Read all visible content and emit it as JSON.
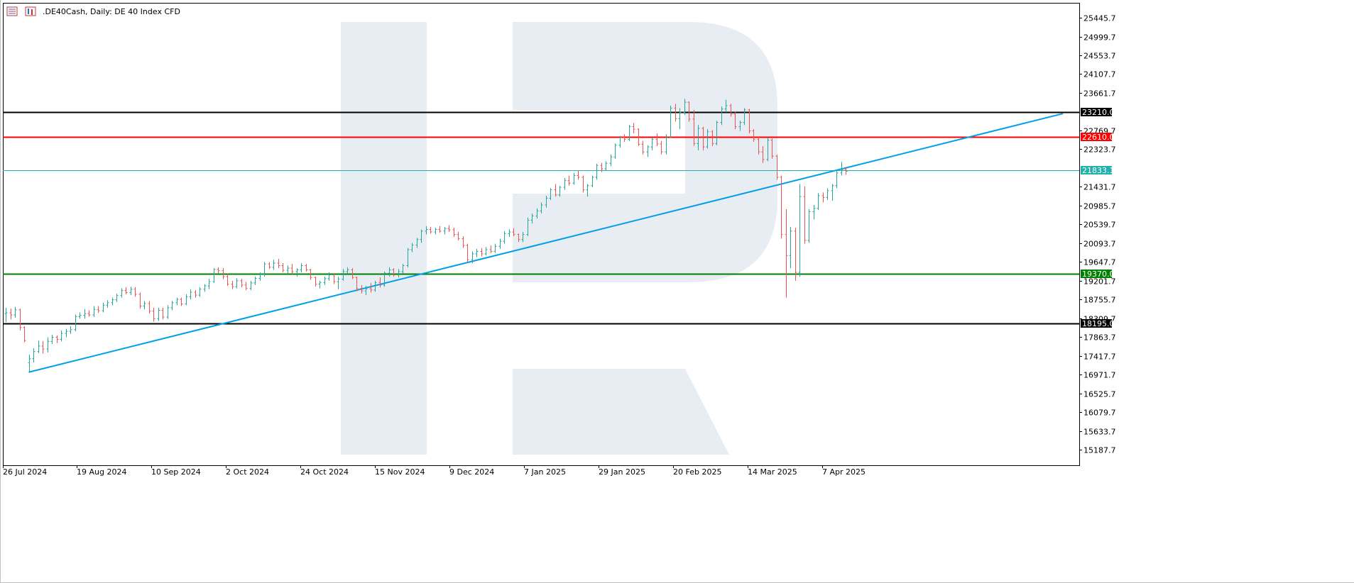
{
  "header": {
    "symbol": ".DE40Cash",
    "timeframe": "Daily",
    "description": "DE 40 Index CFD",
    "title_text": ".DE40Cash, Daily:  DE 40 Index CFD",
    "icons": [
      "bars-menu-icon",
      "chart-type-icon"
    ]
  },
  "chart_data": {
    "type": "bar",
    "title": ".DE40Cash, Daily:  DE 40 Index CFD",
    "xlabel": "",
    "ylabel": "",
    "ylim": [
      14820,
      25800
    ],
    "grid": false,
    "y_ticks": [
      "25445.7",
      "24999.7",
      "24553.7",
      "24107.7",
      "23661.7",
      "22769.7",
      "22323.7",
      "21431.7",
      "20985.7",
      "20539.7",
      "20093.7",
      "19647.7",
      "19201.7",
      "18755.7",
      "18309.7",
      "17863.7",
      "17417.7",
      "16971.7",
      "16525.7",
      "16079.7",
      "15633.7",
      "15187.7"
    ],
    "x_ticks": [
      "26 Jul 2024",
      "19 Aug 2024",
      "10 Sep 2024",
      "2 Oct 2024",
      "24 Oct 2024",
      "15 Nov 2024",
      "9 Dec 2024",
      "7 Jan 2025",
      "29 Jan 2025",
      "20 Feb 2025",
      "14 Mar 2025",
      "7 Apr 2025"
    ],
    "levels": [
      {
        "price": 23210.0,
        "label": "23210.0",
        "color": "#000000"
      },
      {
        "price": 22610.0,
        "label": "22610.0",
        "color": "#ff0000"
      },
      {
        "price": 21833.1,
        "label": "21833.1",
        "color": "#20b2aa"
      },
      {
        "price": 19370.0,
        "label": "19370.0",
        "color": "#008000"
      },
      {
        "price": 18195.0,
        "label": "18195.0",
        "color": "#000000"
      }
    ],
    "trendline": {
      "color": "#00a0e8"
    },
    "colors": {
      "up": "#26a69a",
      "down": "#ef5350"
    },
    "bars": [
      [
        18420,
        18560,
        18220,
        18440
      ],
      [
        18440,
        18540,
        18280,
        18390
      ],
      [
        18390,
        18580,
        18320,
        18510
      ],
      [
        18510,
        18540,
        18020,
        18090
      ],
      [
        18090,
        18120,
        17740,
        17780
      ],
      [
        17250,
        17450,
        17050,
        17350
      ],
      [
        17350,
        17600,
        17260,
        17520
      ],
      [
        17520,
        17780,
        17480,
        17650
      ],
      [
        17650,
        17770,
        17470,
        17580
      ],
      [
        17580,
        17860,
        17500,
        17760
      ],
      [
        17760,
        17920,
        17700,
        17860
      ],
      [
        17860,
        17900,
        17720,
        17810
      ],
      [
        17810,
        18020,
        17760,
        17950
      ],
      [
        17950,
        18060,
        17860,
        18000
      ],
      [
        18000,
        18120,
        17940,
        18040
      ],
      [
        18040,
        18400,
        18000,
        18350
      ],
      [
        18350,
        18450,
        18300,
        18380
      ],
      [
        18380,
        18530,
        18300,
        18420
      ],
      [
        18420,
        18500,
        18350,
        18390
      ],
      [
        18390,
        18600,
        18340,
        18520
      ],
      [
        18520,
        18600,
        18440,
        18490
      ],
      [
        18490,
        18680,
        18450,
        18620
      ],
      [
        18620,
        18740,
        18560,
        18680
      ],
      [
        18680,
        18800,
        18620,
        18750
      ],
      [
        18750,
        18900,
        18700,
        18850
      ],
      [
        18850,
        19020,
        18800,
        18970
      ],
      [
        18970,
        19050,
        18880,
        18920
      ],
      [
        18920,
        19060,
        18860,
        19000
      ],
      [
        19000,
        19050,
        18820,
        18880
      ],
      [
        18880,
        18920,
        18540,
        18600
      ],
      [
        18600,
        18720,
        18520,
        18660
      ],
      [
        18660,
        18720,
        18420,
        18480
      ],
      [
        18480,
        18560,
        18230,
        18300
      ],
      [
        18300,
        18560,
        18250,
        18500
      ],
      [
        18500,
        18560,
        18280,
        18340
      ],
      [
        18340,
        18620,
        18300,
        18560
      ],
      [
        18560,
        18720,
        18500,
        18680
      ],
      [
        18680,
        18800,
        18620,
        18760
      ],
      [
        18760,
        18800,
        18600,
        18650
      ],
      [
        18650,
        18880,
        18620,
        18820
      ],
      [
        18820,
        19000,
        18760,
        18930
      ],
      [
        18930,
        18980,
        18800,
        18860
      ],
      [
        18860,
        19050,
        18820,
        19000
      ],
      [
        19000,
        19120,
        18940,
        19080
      ],
      [
        19080,
        19250,
        19000,
        19180
      ],
      [
        19180,
        19500,
        19150,
        19470
      ],
      [
        19470,
        19520,
        19380,
        19440
      ],
      [
        19440,
        19500,
        19240,
        19300
      ],
      [
        19300,
        19360,
        19080,
        19120
      ],
      [
        19120,
        19200,
        19000,
        19060
      ],
      [
        19060,
        19260,
        19020,
        19200
      ],
      [
        19200,
        19250,
        19050,
        19100
      ],
      [
        19100,
        19180,
        18980,
        19020
      ],
      [
        19020,
        19200,
        18980,
        19150
      ],
      [
        19150,
        19300,
        19100,
        19260
      ],
      [
        19260,
        19400,
        19200,
        19350
      ],
      [
        19350,
        19650,
        19300,
        19600
      ],
      [
        19600,
        19640,
        19480,
        19520
      ],
      [
        19520,
        19700,
        19460,
        19620
      ],
      [
        19620,
        19720,
        19500,
        19560
      ],
      [
        19560,
        19620,
        19400,
        19450
      ],
      [
        19450,
        19560,
        19380,
        19500
      ],
      [
        19500,
        19600,
        19360,
        19420
      ],
      [
        19420,
        19500,
        19300,
        19460
      ],
      [
        19460,
        19620,
        19400,
        19560
      ],
      [
        19560,
        19600,
        19420,
        19460
      ],
      [
        19460,
        19480,
        19220,
        19280
      ],
      [
        19280,
        19300,
        19060,
        19120
      ],
      [
        19120,
        19200,
        19020,
        19160
      ],
      [
        19160,
        19300,
        19100,
        19250
      ],
      [
        19250,
        19400,
        19200,
        19340
      ],
      [
        19340,
        19380,
        19120,
        19180
      ],
      [
        19180,
        19300,
        19000,
        19240
      ],
      [
        19240,
        19480,
        19200,
        19420
      ],
      [
        19420,
        19520,
        19360,
        19460
      ],
      [
        19460,
        19500,
        19240,
        19280
      ],
      [
        19280,
        19300,
        18950,
        19020
      ],
      [
        19020,
        19100,
        18900,
        18960
      ],
      [
        18960,
        19080,
        18860,
        19010
      ],
      [
        19010,
        19150,
        18920,
        18980
      ],
      [
        18980,
        19200,
        18940,
        19160
      ],
      [
        19160,
        19280,
        19040,
        19100
      ],
      [
        19100,
        19420,
        19060,
        19380
      ],
      [
        19380,
        19520,
        19300,
        19460
      ],
      [
        19460,
        19500,
        19300,
        19340
      ],
      [
        19340,
        19480,
        19280,
        19420
      ],
      [
        19420,
        19600,
        19380,
        19560
      ],
      [
        19560,
        19980,
        19520,
        19940
      ],
      [
        19940,
        20100,
        19880,
        20050
      ],
      [
        20050,
        20220,
        19980,
        20180
      ],
      [
        20180,
        20420,
        20100,
        20380
      ],
      [
        20380,
        20500,
        20300,
        20420
      ],
      [
        20420,
        20480,
        20320,
        20360
      ],
      [
        20360,
        20460,
        20300,
        20420
      ],
      [
        20420,
        20500,
        20340,
        20380
      ],
      [
        20380,
        20480,
        20300,
        20440
      ],
      [
        20440,
        20520,
        20360,
        20410
      ],
      [
        20410,
        20460,
        20240,
        20300
      ],
      [
        20300,
        20360,
        20160,
        20200
      ],
      [
        20200,
        20260,
        19980,
        20040
      ],
      [
        20040,
        20080,
        19640,
        19700
      ],
      [
        19700,
        19900,
        19620,
        19840
      ],
      [
        19840,
        19960,
        19760,
        19900
      ],
      [
        19900,
        19980,
        19780,
        19840
      ],
      [
        19840,
        20000,
        19800,
        19940
      ],
      [
        19940,
        20040,
        19860,
        19900
      ],
      [
        19900,
        20080,
        19860,
        20020
      ],
      [
        20020,
        20200,
        19960,
        20140
      ],
      [
        20140,
        20380,
        20080,
        20320
      ],
      [
        20320,
        20420,
        20240,
        20360
      ],
      [
        20360,
        20450,
        20260,
        20300
      ],
      [
        20300,
        20320,
        20120,
        20180
      ],
      [
        20180,
        20360,
        20120,
        20300
      ],
      [
        20300,
        20700,
        20260,
        20640
      ],
      [
        20640,
        20800,
        20560,
        20740
      ],
      [
        20740,
        20920,
        20680,
        20860
      ],
      [
        20860,
        21060,
        20800,
        21000
      ],
      [
        21000,
        21220,
        20940,
        21160
      ],
      [
        21160,
        21400,
        21120,
        21360
      ],
      [
        21360,
        21500,
        21200,
        21240
      ],
      [
        21240,
        21450,
        21200,
        21420
      ],
      [
        21420,
        21640,
        21360,
        21580
      ],
      [
        21580,
        21700,
        21460,
        21520
      ],
      [
        21520,
        21760,
        21480,
        21700
      ],
      [
        21700,
        21820,
        21600,
        21660
      ],
      [
        21660,
        21700,
        21300,
        21360
      ],
      [
        21360,
        21500,
        21200,
        21460
      ],
      [
        21460,
        21700,
        21420,
        21660
      ],
      [
        21660,
        21980,
        21600,
        21940
      ],
      [
        21940,
        22000,
        21780,
        21860
      ],
      [
        21860,
        22040,
        21820,
        21990
      ],
      [
        21990,
        22200,
        21920,
        22140
      ],
      [
        22140,
        22460,
        22100,
        22420
      ],
      [
        22420,
        22640,
        22360,
        22600
      ],
      [
        22600,
        22680,
        22500,
        22560
      ],
      [
        22560,
        22900,
        22520,
        22860
      ],
      [
        22860,
        22950,
        22700,
        22800
      ],
      [
        22800,
        22820,
        22400,
        22440
      ],
      [
        22440,
        22520,
        22200,
        22260
      ],
      [
        22260,
        22420,
        22140,
        22380
      ],
      [
        22380,
        22600,
        22300,
        22560
      ],
      [
        22560,
        22700,
        22400,
        22450
      ],
      [
        22450,
        22520,
        22200,
        22260
      ],
      [
        22260,
        22680,
        22200,
        22620
      ],
      [
        22620,
        23360,
        22600,
        23300
      ],
      [
        23300,
        23400,
        22980,
        23050
      ],
      [
        23050,
        23300,
        22800,
        23200
      ],
      [
        23200,
        23520,
        23140,
        23440
      ],
      [
        23440,
        23460,
        22980,
        23040
      ],
      [
        23040,
        23260,
        22400,
        22460
      ],
      [
        22460,
        22900,
        22300,
        22820
      ],
      [
        22820,
        22860,
        22300,
        22380
      ],
      [
        22380,
        22800,
        22340,
        22740
      ],
      [
        22740,
        22780,
        22400,
        22460
      ],
      [
        22460,
        23000,
        22420,
        22960
      ],
      [
        22960,
        23340,
        22900,
        23280
      ],
      [
        23280,
        23500,
        23200,
        23360
      ],
      [
        23360,
        23400,
        23100,
        23160
      ],
      [
        23160,
        23220,
        22800,
        22860
      ],
      [
        22860,
        23000,
        22760,
        22960
      ],
      [
        22960,
        23300,
        22900,
        23260
      ],
      [
        23260,
        23280,
        22700,
        22760
      ],
      [
        22760,
        22800,
        22500,
        22560
      ],
      [
        22560,
        22620,
        22200,
        22260
      ],
      [
        22260,
        22400,
        22000,
        22080
      ],
      [
        22080,
        22600,
        22040,
        22540
      ],
      [
        22540,
        22580,
        22100,
        22160
      ],
      [
        22160,
        22200,
        21600,
        21660
      ],
      [
        21660,
        21700,
        20200,
        20300
      ],
      [
        20300,
        20900,
        18800,
        19800
      ],
      [
        19800,
        20480,
        19500,
        20380
      ],
      [
        20380,
        20460,
        19200,
        19400
      ],
      [
        19400,
        21500,
        19300,
        21200
      ],
      [
        21200,
        21440,
        20080,
        20160
      ],
      [
        20160,
        20900,
        20100,
        20840
      ],
      [
        20840,
        21000,
        20660,
        20920
      ],
      [
        20920,
        21280,
        20880,
        21220
      ],
      [
        21220,
        21300,
        21060,
        21180
      ],
      [
        21180,
        21400,
        21120,
        21340
      ],
      [
        21340,
        21500,
        21100,
        21460
      ],
      [
        21460,
        21820,
        21400,
        21760
      ],
      [
        21760,
        22020,
        21700,
        21840
      ],
      [
        21840,
        21900,
        21720,
        21800
      ]
    ]
  }
}
